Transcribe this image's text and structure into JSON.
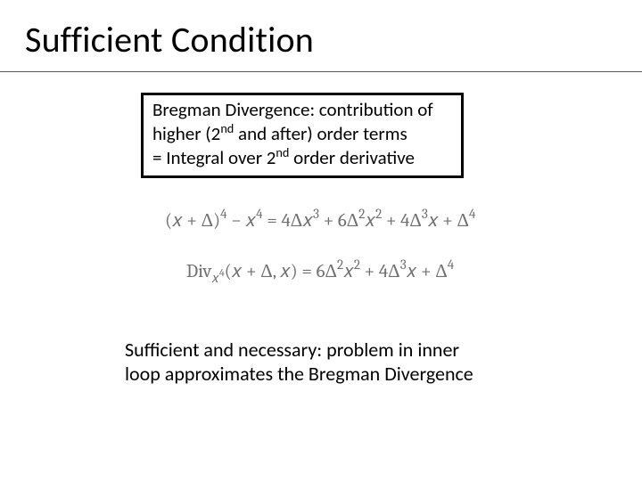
{
  "title": "Sufficient Condition",
  "box": {
    "line1_a": "Bregman Divergence: contribution of",
    "line2_a": "higher (2",
    "line2_sup": "nd",
    "line2_b": " and after) order terms",
    "line3_a": "= Integral over 2",
    "line3_sup": "nd",
    "line3_b": " order derivative"
  },
  "eq": {
    "e1": {
      "a": "(𝑥 + Δ)",
      "p4a": "4",
      "b": " − 𝑥",
      "p4b": "4",
      "c": " = 4Δ𝑥",
      "p3a": "3",
      "d": " + 6Δ",
      "p2a": "2",
      "e": "𝑥",
      "p2b": "2",
      "f": " + 4Δ",
      "p3b": "3",
      "g": "𝑥 + Δ",
      "p4c": "4"
    },
    "e2": {
      "div": "Div",
      "sub_a": "𝑥",
      "sub_p": "4",
      "a": "(𝑥 + Δ, 𝑥) = 6Δ",
      "p2a": "2",
      "b": "𝑥",
      "p2b": "2",
      "c": " + 4Δ",
      "p3": "3",
      "d": "𝑥 + Δ",
      "p4": "4"
    }
  },
  "footer": {
    "line1": "Sufficient and necessary: problem in inner",
    "line2": "loop approximates the Bregman Divergence"
  },
  "style": {
    "title_fontsize": 40,
    "box_fontsize": 21,
    "eq_fontsize": 21,
    "footer_fontsize": 22,
    "eq_color": "#707070",
    "text_color": "#000000",
    "underline_color": "#595959",
    "box_border": "#000000",
    "background": "#ffffff"
  }
}
